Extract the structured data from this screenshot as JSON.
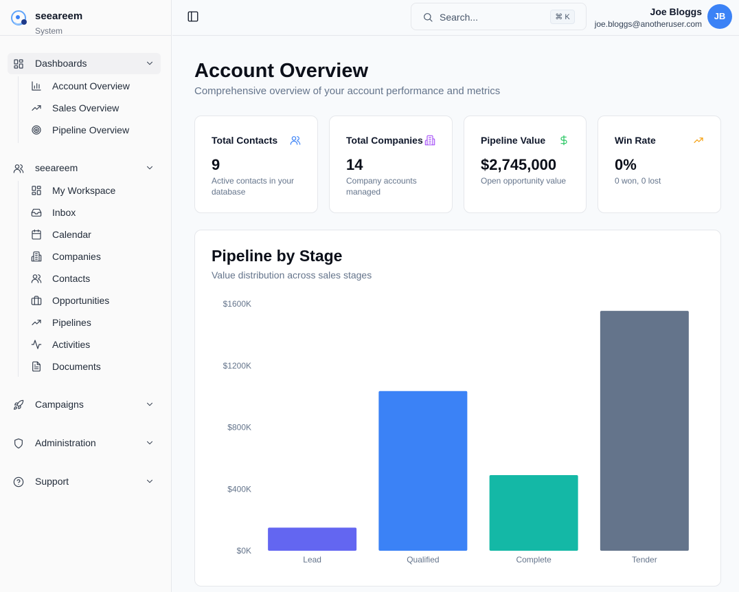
{
  "brand": {
    "name": "seeareem",
    "subtitle": "System"
  },
  "sidebar": {
    "dashboards": {
      "label": "Dashboards",
      "items": [
        {
          "label": "Account Overview",
          "icon": "bar-chart-icon"
        },
        {
          "label": "Sales Overview",
          "icon": "trending-up-icon"
        },
        {
          "label": "Pipeline Overview",
          "icon": "target-icon"
        }
      ]
    },
    "workspace": {
      "label": "seeareem",
      "items": [
        {
          "label": "My Workspace",
          "icon": "layout-grid-icon"
        },
        {
          "label": "Inbox",
          "icon": "inbox-icon"
        },
        {
          "label": "Calendar",
          "icon": "calendar-icon"
        },
        {
          "label": "Companies",
          "icon": "building-icon"
        },
        {
          "label": "Contacts",
          "icon": "users-icon"
        },
        {
          "label": "Opportunities",
          "icon": "briefcase-icon"
        },
        {
          "label": "Pipelines",
          "icon": "trending-up-icon"
        },
        {
          "label": "Activities",
          "icon": "activity-icon"
        },
        {
          "label": "Documents",
          "icon": "file-text-icon"
        }
      ]
    },
    "campaigns": {
      "label": "Campaigns"
    },
    "administration": {
      "label": "Administration"
    },
    "support": {
      "label": "Support"
    }
  },
  "topbar": {
    "search_placeholder": "Search...",
    "shortcut": "⌘ K",
    "user_name": "Joe Bloggs",
    "user_email": "joe.bloggs@anotheruser.com",
    "user_initials": "JB"
  },
  "page": {
    "title": "Account Overview",
    "subtitle": "Comprehensive overview of your account performance and metrics"
  },
  "stats": [
    {
      "title": "Total Contacts",
      "value": "9",
      "desc": "Active contacts in your database",
      "icon": "users-icon",
      "color": "#3b82f6"
    },
    {
      "title": "Total Companies",
      "value": "14",
      "desc": "Company accounts managed",
      "icon": "building-icon",
      "color": "#a855f7"
    },
    {
      "title": "Pipeline Value",
      "value": "$2,745,000",
      "desc": "Open opportunity value",
      "icon": "dollar-icon",
      "color": "#22c55e"
    },
    {
      "title": "Win Rate",
      "value": "0%",
      "desc": "0 won, 0 lost",
      "icon": "trending-up-icon",
      "color": "#f59e0b"
    }
  ],
  "chart_section": {
    "title": "Pipeline by Stage",
    "subtitle": "Value distribution across sales stages"
  },
  "chart_data": {
    "type": "bar",
    "title": "Pipeline by Stage",
    "categories": [
      "Lead",
      "Qualified",
      "Complete",
      "Tender"
    ],
    "values": [
      150000,
      1035000,
      490000,
      1555000
    ],
    "colors": [
      "#6366f1",
      "#3b82f6",
      "#14b8a6",
      "#64748b"
    ],
    "ylim": [
      0,
      1600000
    ],
    "yticks": [
      "$0K",
      "$400K",
      "$800K",
      "$1200K",
      "$1600K"
    ],
    "grid": false,
    "legend": "none"
  }
}
